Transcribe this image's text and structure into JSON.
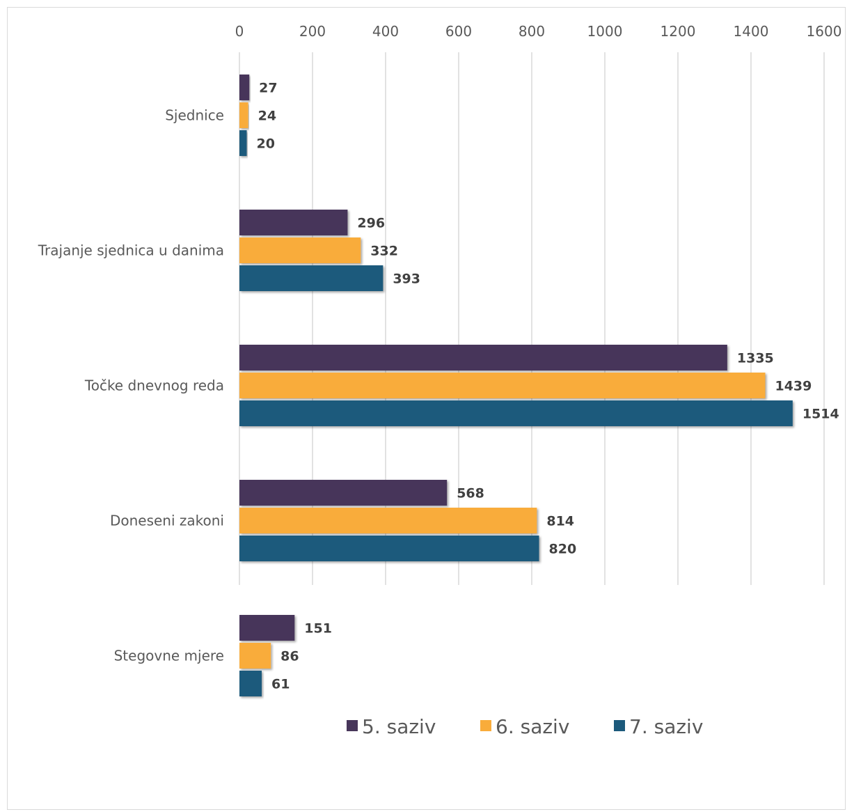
{
  "chart_data": {
    "type": "bar",
    "orientation": "horizontal",
    "title": "",
    "xlabel": "",
    "ylabel": "",
    "xlim": [
      0,
      1600
    ],
    "ticks": [
      0,
      200,
      400,
      600,
      800,
      1000,
      1200,
      1400,
      1600
    ],
    "tick_labels": [
      "0",
      "200",
      "400",
      "600",
      "800",
      "1000",
      "1200",
      "1400",
      "1600"
    ],
    "x_axis_position": "top",
    "grid": true,
    "legend_position": "bottom",
    "categories": [
      "Sjednice",
      "Trajanje sjednica u danima",
      "Točke dnevnog reda",
      "Doneseni zakoni",
      "Stegovne mjere"
    ],
    "series": [
      {
        "name": "5. saziv",
        "color": "#47365a",
        "values": [
          27,
          296,
          1335,
          568,
          151
        ]
      },
      {
        "name": "6. saziv",
        "color": "#f9ac3b",
        "values": [
          24,
          332,
          1439,
          814,
          86
        ]
      },
      {
        "name": "7. saziv",
        "color": "#1c5a7c",
        "values": [
          20,
          393,
          1514,
          820,
          61
        ]
      }
    ]
  }
}
